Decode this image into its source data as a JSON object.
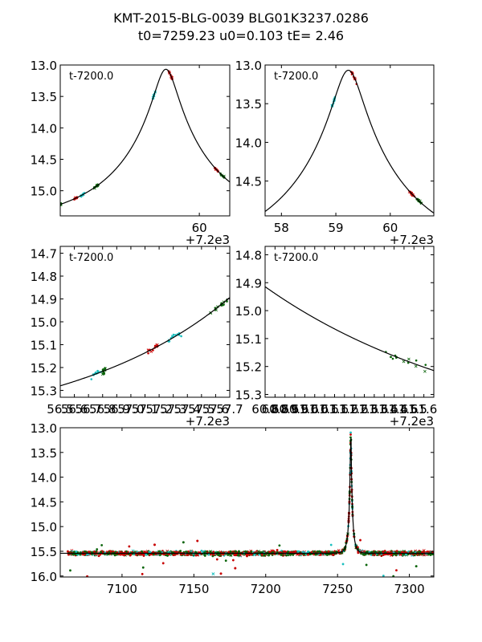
{
  "title_line1": "KMT-2015-BLG-0039 BLG01K3237.0286",
  "title_line2": "t0=7259.23 u0=0.103 tE=   2.46",
  "colors": {
    "cyan": "#19bfbf",
    "red": "#c80000",
    "green": "#0a640a",
    "model": "#000000"
  },
  "chart_data": [
    {
      "id": "panel-top-left",
      "type": "scatter",
      "annotation": "t-7200.0",
      "offset_label": "+7.2e3",
      "xlim": [
        56.8,
        60.7
      ],
      "ylim": [
        15.4,
        13.0
      ],
      "x_ticks": [
        {
          "v": 60,
          "label": "60"
        }
      ],
      "y_ticks": [
        {
          "v": 13.0,
          "label": "13.0"
        },
        {
          "v": 13.5,
          "label": "13.5"
        },
        {
          "v": 14.0,
          "label": "14.0"
        },
        {
          "v": 14.5,
          "label": "14.5"
        },
        {
          "v": 15.0,
          "label": "15.0"
        }
      ],
      "model": {
        "t0": 59.23,
        "u0": 0.103,
        "tE": 2.46,
        "mbase": 15.54
      }
    },
    {
      "id": "panel-top-right",
      "type": "scatter",
      "annotation": "t-7200.0",
      "offset_label": "+7.2e3",
      "xlim": [
        57.7,
        60.8
      ],
      "ylim": [
        14.95,
        13.0
      ],
      "x_ticks": [
        {
          "v": 58,
          "label": "58"
        },
        {
          "v": 59,
          "label": "59"
        },
        {
          "v": 60,
          "label": "60"
        }
      ],
      "y_ticks": [
        {
          "v": 13.0,
          "label": "13.0"
        },
        {
          "v": 13.5,
          "label": "13.5"
        },
        {
          "v": 14.0,
          "label": "14.0"
        },
        {
          "v": 14.5,
          "label": "14.5"
        }
      ],
      "model": {
        "t0": 59.23,
        "u0": 0.103,
        "tE": 2.46,
        "mbase": 15.54
      }
    },
    {
      "id": "panel-mid-left",
      "type": "scatter",
      "annotation": "t-7200.0",
      "offset_label": "+7.2e3",
      "xlim": [
        56.5,
        57.7
      ],
      "ylim": [
        15.33,
        14.67
      ],
      "x_ticks": [
        {
          "v": 56.5,
          "label": "56.5"
        },
        {
          "v": 56.6,
          "label": "56.6"
        },
        {
          "v": 56.7,
          "label": "56.7"
        },
        {
          "v": 56.8,
          "label": "56.8"
        },
        {
          "v": 56.9,
          "label": "56.9"
        },
        {
          "v": 57.0,
          "label": "57.0"
        },
        {
          "v": 57.1,
          "label": "57.1"
        },
        {
          "v": 57.2,
          "label": "57.2"
        },
        {
          "v": 57.3,
          "label": "57.3"
        },
        {
          "v": 57.4,
          "label": "57.4"
        },
        {
          "v": 57.5,
          "label": "57.5"
        },
        {
          "v": 57.6,
          "label": "57.6"
        },
        {
          "v": 57.7,
          "label": "57.7"
        }
      ],
      "y_ticks": [
        {
          "v": 14.7,
          "label": "14.7"
        },
        {
          "v": 14.8,
          "label": "14.8"
        },
        {
          "v": 14.9,
          "label": "14.9"
        },
        {
          "v": 15.0,
          "label": "15.0"
        },
        {
          "v": 15.1,
          "label": "15.1"
        },
        {
          "v": 15.2,
          "label": "15.2"
        },
        {
          "v": 15.3,
          "label": "15.3"
        }
      ],
      "model": {
        "t0": 59.23,
        "u0": 0.103,
        "tE": 2.46,
        "mbase": 15.54
      }
    },
    {
      "id": "panel-mid-right",
      "type": "scatter",
      "annotation": "t-7200.0",
      "offset_label": "+7.2e3",
      "xlim": [
        60.8,
        61.65
      ],
      "ylim": [
        15.31,
        14.77
      ],
      "x_ticks": [
        {
          "v": 60.8,
          "label": "60.8"
        },
        {
          "v": 60.85,
          "label": "60.8"
        },
        {
          "v": 60.9,
          "label": "60.9"
        },
        {
          "v": 60.95,
          "label": "60.9"
        },
        {
          "v": 61.0,
          "label": "61.0"
        },
        {
          "v": 61.05,
          "label": "61.0"
        },
        {
          "v": 61.1,
          "label": "61.1"
        },
        {
          "v": 61.15,
          "label": "61.1"
        },
        {
          "v": 61.2,
          "label": "61.2"
        },
        {
          "v": 61.25,
          "label": "61.2"
        },
        {
          "v": 61.3,
          "label": "61.3"
        },
        {
          "v": 61.35,
          "label": "61.3"
        },
        {
          "v": 61.4,
          "label": "61.4"
        },
        {
          "v": 61.45,
          "label": "61.4"
        },
        {
          "v": 61.5,
          "label": "61.5"
        },
        {
          "v": 61.55,
          "label": "61.5"
        },
        {
          "v": 61.6,
          "label": "61.6"
        }
      ],
      "y_ticks": [
        {
          "v": 14.8,
          "label": "14.8"
        },
        {
          "v": 14.9,
          "label": "14.9"
        },
        {
          "v": 15.0,
          "label": "15.0"
        },
        {
          "v": 15.1,
          "label": "15.1"
        },
        {
          "v": 15.2,
          "label": "15.2"
        },
        {
          "v": 15.3,
          "label": "15.3"
        }
      ],
      "model": {
        "t0": 59.23,
        "u0": 0.103,
        "tE": 2.46,
        "mbase": 15.54
      }
    },
    {
      "id": "panel-bottom",
      "type": "scatter",
      "xlim": [
        7057,
        7317
      ],
      "ylim": [
        16.02,
        13.0
      ],
      "x_ticks": [
        {
          "v": 7100,
          "label": "7100"
        },
        {
          "v": 7150,
          "label": "7150"
        },
        {
          "v": 7200,
          "label": "7200"
        },
        {
          "v": 7250,
          "label": "7250"
        },
        {
          "v": 7300,
          "label": "7300"
        }
      ],
      "y_ticks": [
        {
          "v": 13.0,
          "label": "13.0"
        },
        {
          "v": 13.5,
          "label": "13.5"
        },
        {
          "v": 14.0,
          "label": "14.0"
        },
        {
          "v": 14.5,
          "label": "14.5"
        },
        {
          "v": 15.0,
          "label": "15.0"
        },
        {
          "v": 15.5,
          "label": "15.5"
        },
        {
          "v": 16.0,
          "label": "16.0"
        }
      ],
      "model": {
        "t0": 7259.23,
        "u0": 0.103,
        "tE": 2.46,
        "mbase": 15.54
      }
    }
  ]
}
